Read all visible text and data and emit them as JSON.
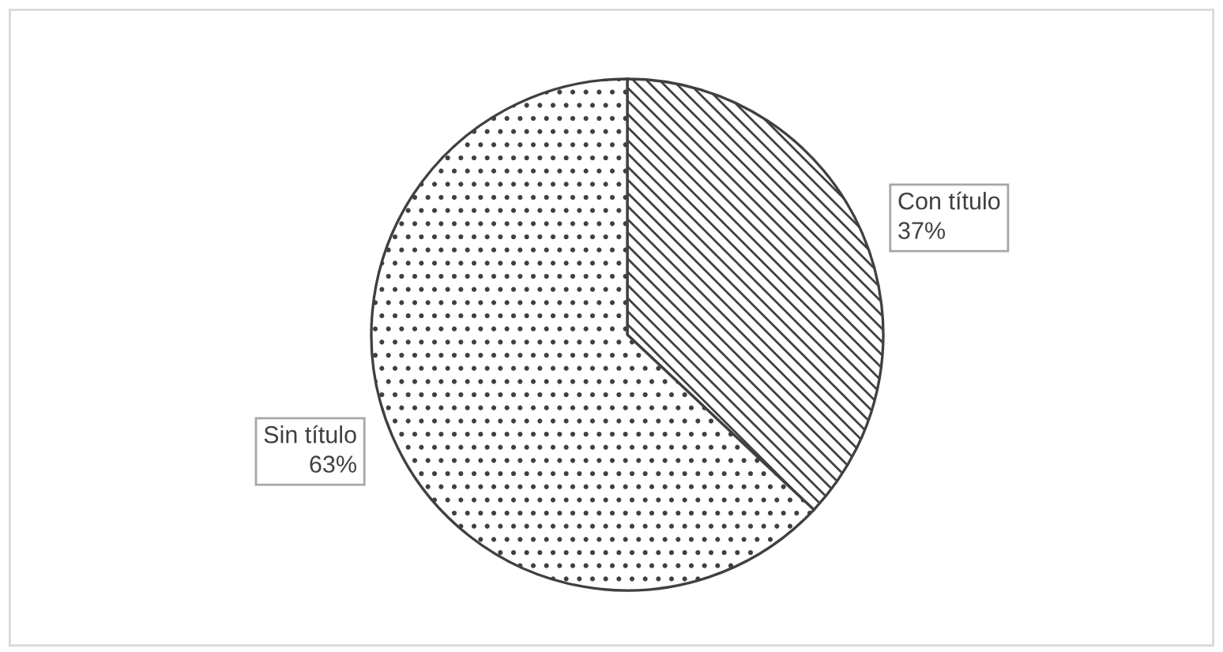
{
  "chart_data": {
    "type": "pie",
    "categories": [
      "Con título",
      "Sin título"
    ],
    "values": [
      37,
      63
    ],
    "colors": [
      "#404040",
      "#404040"
    ],
    "value_labels": [
      "37%",
      "63%"
    ]
  }
}
